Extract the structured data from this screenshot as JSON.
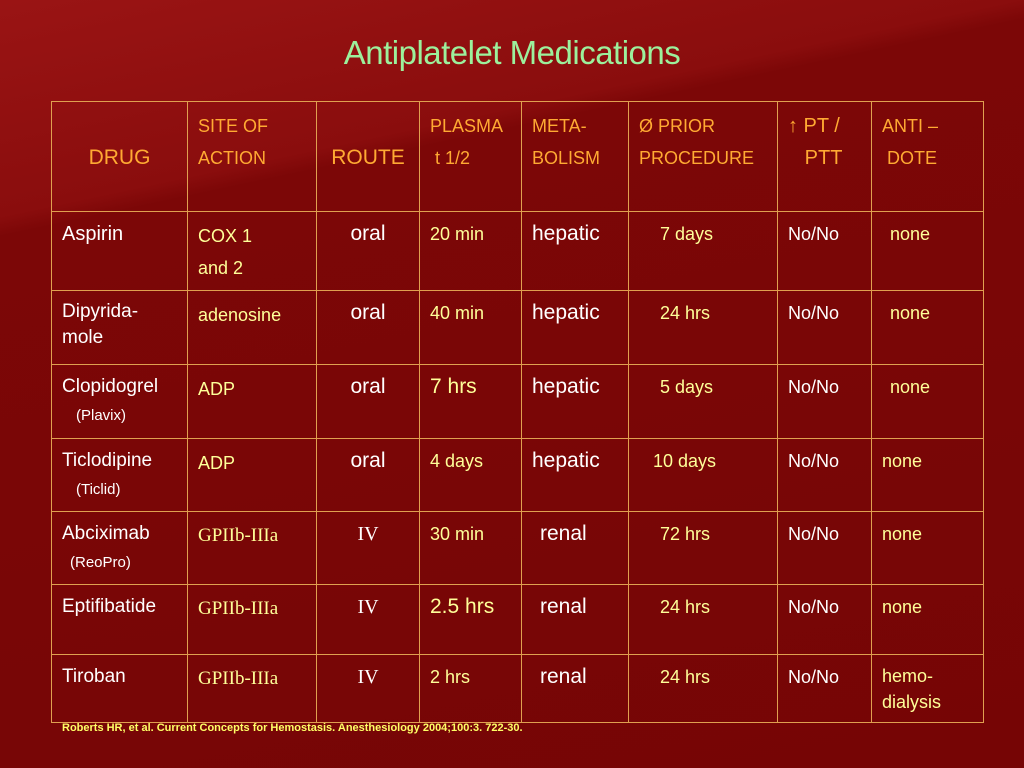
{
  "title": "Antiplatelet Medications",
  "header": {
    "drug": "DRUG",
    "site1": "SITE OF",
    "site2": "ACTION",
    "route": "ROUTE",
    "plasma1": "PLASMA",
    "plasma2": "t 1/2",
    "meta1": "META-",
    "meta2": "BOLISM",
    "prior1": "Ø PRIOR",
    "prior2": "PROCEDURE",
    "pt1": "↑ PT /",
    "pt2": "PTT",
    "anti1": "ANTI –",
    "anti2": "DOTE"
  },
  "rows": [
    {
      "drug": "Aspirin",
      "drug_sub": "",
      "site1": "COX 1",
      "site2": "and 2",
      "route": "oral",
      "plasma": "20 min",
      "meta": "hepatic",
      "prior": "7 days",
      "pt": "No/No",
      "anti": "none"
    },
    {
      "drug": "Dipyrida-",
      "drug_sub": "mole",
      "site1": "adenosine",
      "site2": "",
      "route": "oral",
      "plasma": "40 min",
      "meta": "hepatic",
      "prior": "24 hrs",
      "pt": "No/No",
      "anti": "none"
    },
    {
      "drug": "Clopidogrel",
      "drug_sub": "(Plavix)",
      "site1": "ADP",
      "site2": "",
      "route": "oral",
      "plasma": "7 hrs",
      "meta": "hepatic",
      "prior": "5 days",
      "pt": "No/No",
      "anti": "none"
    },
    {
      "drug": "Ticlodipine",
      "drug_sub": "(Ticlid)",
      "site1": "ADP",
      "site2": "",
      "route": "oral",
      "plasma": "4 days",
      "meta": "hepatic",
      "prior": "10 days",
      "pt": "No/No",
      "anti": "none"
    },
    {
      "drug": "Abciximab",
      "drug_sub": "(ReoPro)",
      "site1": "GPIIb-IIIa",
      "site2": "",
      "route": "IV",
      "plasma": "30 min",
      "meta": "renal",
      "prior": "72 hrs",
      "pt": "No/No",
      "anti": "none"
    },
    {
      "drug": "Eptifibatide",
      "drug_sub": "",
      "site1": "GPIIb-IIIa",
      "site2": "",
      "route": "IV",
      "plasma": "2.5 hrs",
      "meta": "renal",
      "prior": "24 hrs",
      "pt": "No/No",
      "anti": "none"
    },
    {
      "drug": "Tiroban",
      "drug_sub": "",
      "site1": "GPIIb-IIIa",
      "site2": "",
      "route": "IV",
      "plasma": "2 hrs",
      "meta": "renal",
      "prior": "24 hrs",
      "pt": "No/No",
      "anti": "hemo-",
      "anti2": "dialysis"
    }
  ],
  "footer": "Roberts HR, et al. Current Concepts for Hemostasis. Anesthesiology 2004;100:3. 722-30.",
  "colors": {
    "background": "#7a0606",
    "title": "#9cf09c",
    "header": "#ffaa33",
    "cell_yellow": "#ffff99",
    "border": "#e0a050",
    "footer": "#ffff66"
  }
}
